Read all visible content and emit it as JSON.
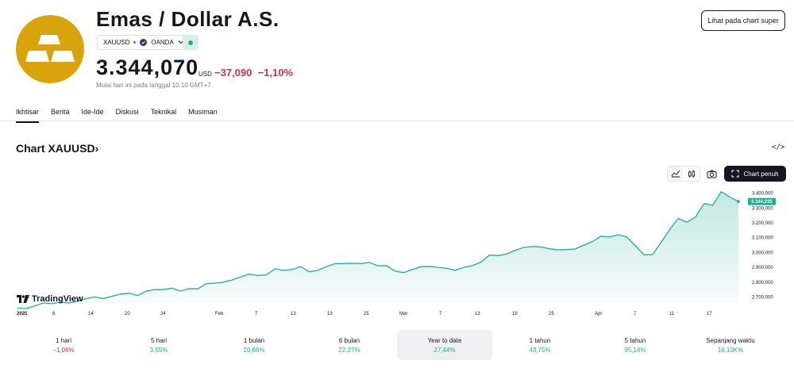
{
  "header": {
    "title": "Emas / Dollar A.S.",
    "symbol": "XAUUSD",
    "exchange": "OANDA",
    "price": "3.344,070",
    "currency": "USD",
    "change_abs": "−37,090",
    "change_pct": "−1,10%",
    "subtext": "Mulai hari ini pada tanggal 10.10 GMT+7",
    "super_chart_label": "Lihat pada chart super"
  },
  "tabs": [
    "Ikhtisar",
    "Berita",
    "Ide-Ide",
    "Diskusi",
    "Teknikal",
    "Musiman"
  ],
  "chart_section": {
    "title": "Chart XAUUSD",
    "title_arrow": "›",
    "embed_label": "</>",
    "full_chart_label": "Chart penuh",
    "brand": "TradingView"
  },
  "chart_data": {
    "type": "area",
    "x_ticks": [
      "2025",
      "8",
      "14",
      "20",
      "24",
      "Feb",
      "7",
      "13",
      "19",
      "25",
      "Mar",
      "7",
      "13",
      "19",
      "25",
      "Apr",
      "7",
      "11",
      "17"
    ],
    "y_ticks": [
      "3.400,000",
      "3.300,000",
      "3.200,000",
      "3.100,000",
      "3.000,000",
      "2.900,000",
      "2.800,000",
      "2.700,000"
    ],
    "y_tick_values": [
      3400,
      3300,
      3200,
      3100,
      3000,
      2900,
      2800,
      2700
    ],
    "ylim": [
      2660,
      3430
    ],
    "last_value_label": "3.344,235",
    "values": [
      2625,
      2622,
      2640,
      2660,
      2655,
      2665,
      2660,
      2670,
      2690,
      2700,
      2690,
      2705,
      2720,
      2725,
      2710,
      2740,
      2750,
      2750,
      2760,
      2740,
      2757,
      2755,
      2790,
      2793,
      2800,
      2815,
      2835,
      2855,
      2845,
      2850,
      2890,
      2880,
      2885,
      2905,
      2870,
      2880,
      2905,
      2925,
      2925,
      2928,
      2925,
      2933,
      2910,
      2912,
      2875,
      2865,
      2885,
      2905,
      2907,
      2900,
      2895,
      2880,
      2900,
      2912,
      2935,
      2983,
      2980,
      2990,
      3015,
      3035,
      3040,
      3038,
      3025,
      3018,
      3020,
      3024,
      3050,
      3075,
      3110,
      3105,
      3120,
      3105,
      3045,
      2985,
      2985,
      3070,
      3155,
      3230,
      3205,
      3240,
      3330,
      3320,
      3410,
      3375,
      3344
    ],
    "line_color": "#22ab94",
    "fill_color": "#22ab94",
    "grid": false
  },
  "periods": [
    {
      "label": "1 hari",
      "value": "−1,06%",
      "sign": "neg"
    },
    {
      "label": "5 hari",
      "value": "3,55%",
      "sign": "pos"
    },
    {
      "label": "1 bulan",
      "value": "10,66%",
      "sign": "pos"
    },
    {
      "label": "6 bulan",
      "value": "22,27%",
      "sign": "pos"
    },
    {
      "label": "Year to date",
      "value": "27,44%",
      "sign": "pos",
      "active": true
    },
    {
      "label": "1 tahun",
      "value": "43,75%",
      "sign": "pos"
    },
    {
      "label": "5 tahun",
      "value": "95,14%",
      "sign": "pos"
    },
    {
      "label": "Sepanjang waktu",
      "value": "16,10K%",
      "sign": "pos"
    }
  ]
}
